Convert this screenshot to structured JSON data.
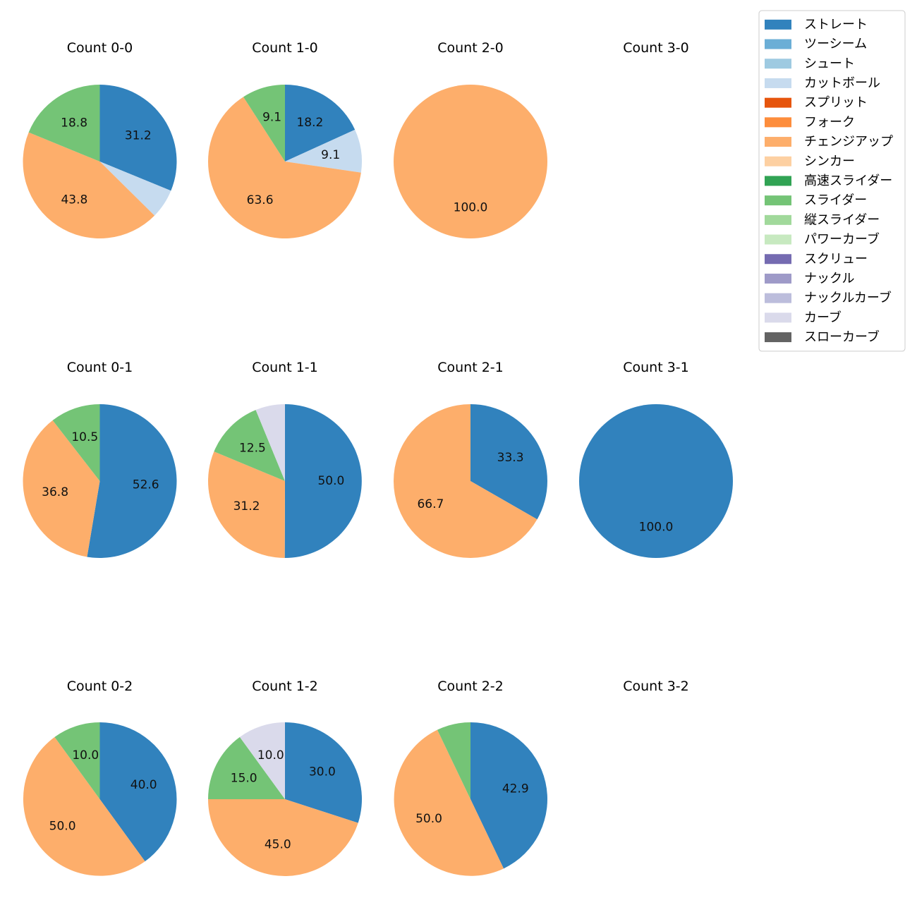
{
  "legend": {
    "placement": "top-right",
    "entries": [
      {
        "name": "ストレート",
        "color": "#3182bd"
      },
      {
        "name": "ツーシーム",
        "color": "#6baed6"
      },
      {
        "name": "シュート",
        "color": "#9ecae1"
      },
      {
        "name": "カットボール",
        "color": "#c6dbef"
      },
      {
        "name": "スプリット",
        "color": "#e6550d"
      },
      {
        "name": "フォーク",
        "color": "#fd8d3c"
      },
      {
        "name": "チェンジアップ",
        "color": "#fdae6b"
      },
      {
        "name": "シンカー",
        "color": "#fdd0a2"
      },
      {
        "name": "高速スライダー",
        "color": "#31a354"
      },
      {
        "name": "スライダー",
        "color": "#74c476"
      },
      {
        "name": "縦スライダー",
        "color": "#a1d99b"
      },
      {
        "name": "パワーカーブ",
        "color": "#c7e9c0"
      },
      {
        "name": "スクリュー",
        "color": "#756bb1"
      },
      {
        "name": "ナックル",
        "color": "#9e9ac8"
      },
      {
        "name": "ナックルカーブ",
        "color": "#bcbddc"
      },
      {
        "name": "カーブ",
        "color": "#dadaeb"
      },
      {
        "name": "スローカーブ",
        "color": "#636363"
      }
    ]
  },
  "chart_data": [
    {
      "type": "pie",
      "title": "Count 0-0",
      "slices": [
        {
          "name": "ストレート",
          "value": 31.2,
          "label": "31.2"
        },
        {
          "name": "カットボール",
          "value": 6.2,
          "label": ""
        },
        {
          "name": "チェンジアップ",
          "value": 43.8,
          "label": "43.8"
        },
        {
          "name": "スライダー",
          "value": 18.8,
          "label": "18.8"
        }
      ]
    },
    {
      "type": "pie",
      "title": "Count 1-0",
      "slices": [
        {
          "name": "ストレート",
          "value": 18.2,
          "label": "18.2"
        },
        {
          "name": "カットボール",
          "value": 9.1,
          "label": "9.1"
        },
        {
          "name": "チェンジアップ",
          "value": 63.6,
          "label": "63.6"
        },
        {
          "name": "スライダー",
          "value": 9.1,
          "label": "9.1"
        }
      ]
    },
    {
      "type": "pie",
      "title": "Count 2-0",
      "slices": [
        {
          "name": "チェンジアップ",
          "value": 100.0,
          "label": "100.0"
        }
      ]
    },
    {
      "type": "pie",
      "title": "Count 3-0",
      "slices": []
    },
    {
      "type": "pie",
      "title": "Count 0-1",
      "slices": [
        {
          "name": "ストレート",
          "value": 52.6,
          "label": "52.6"
        },
        {
          "name": "チェンジアップ",
          "value": 36.8,
          "label": "36.8"
        },
        {
          "name": "スライダー",
          "value": 10.5,
          "label": "10.5"
        }
      ]
    },
    {
      "type": "pie",
      "title": "Count 1-1",
      "slices": [
        {
          "name": "ストレート",
          "value": 50.0,
          "label": "50.0"
        },
        {
          "name": "チェンジアップ",
          "value": 31.2,
          "label": "31.2"
        },
        {
          "name": "スライダー",
          "value": 12.5,
          "label": "12.5"
        },
        {
          "name": "カーブ",
          "value": 6.2,
          "label": ""
        }
      ]
    },
    {
      "type": "pie",
      "title": "Count 2-1",
      "slices": [
        {
          "name": "ストレート",
          "value": 33.3,
          "label": "33.3"
        },
        {
          "name": "チェンジアップ",
          "value": 66.7,
          "label": "66.7"
        }
      ]
    },
    {
      "type": "pie",
      "title": "Count 3-1",
      "slices": [
        {
          "name": "ストレート",
          "value": 100.0,
          "label": "100.0"
        }
      ]
    },
    {
      "type": "pie",
      "title": "Count 0-2",
      "slices": [
        {
          "name": "ストレート",
          "value": 40.0,
          "label": "40.0"
        },
        {
          "name": "チェンジアップ",
          "value": 50.0,
          "label": "50.0"
        },
        {
          "name": "スライダー",
          "value": 10.0,
          "label": "10.0"
        }
      ]
    },
    {
      "type": "pie",
      "title": "Count 1-2",
      "slices": [
        {
          "name": "ストレート",
          "value": 30.0,
          "label": "30.0"
        },
        {
          "name": "チェンジアップ",
          "value": 45.0,
          "label": "45.0"
        },
        {
          "name": "スライダー",
          "value": 15.0,
          "label": "15.0"
        },
        {
          "name": "カーブ",
          "value": 10.0,
          "label": "10.0"
        }
      ]
    },
    {
      "type": "pie",
      "title": "Count 2-2",
      "slices": [
        {
          "name": "ストレート",
          "value": 42.9,
          "label": "42.9"
        },
        {
          "name": "チェンジアップ",
          "value": 50.0,
          "label": "50.0"
        },
        {
          "name": "スライダー",
          "value": 7.1,
          "label": ""
        }
      ]
    },
    {
      "type": "pie",
      "title": "Count 3-2",
      "slices": []
    }
  ]
}
